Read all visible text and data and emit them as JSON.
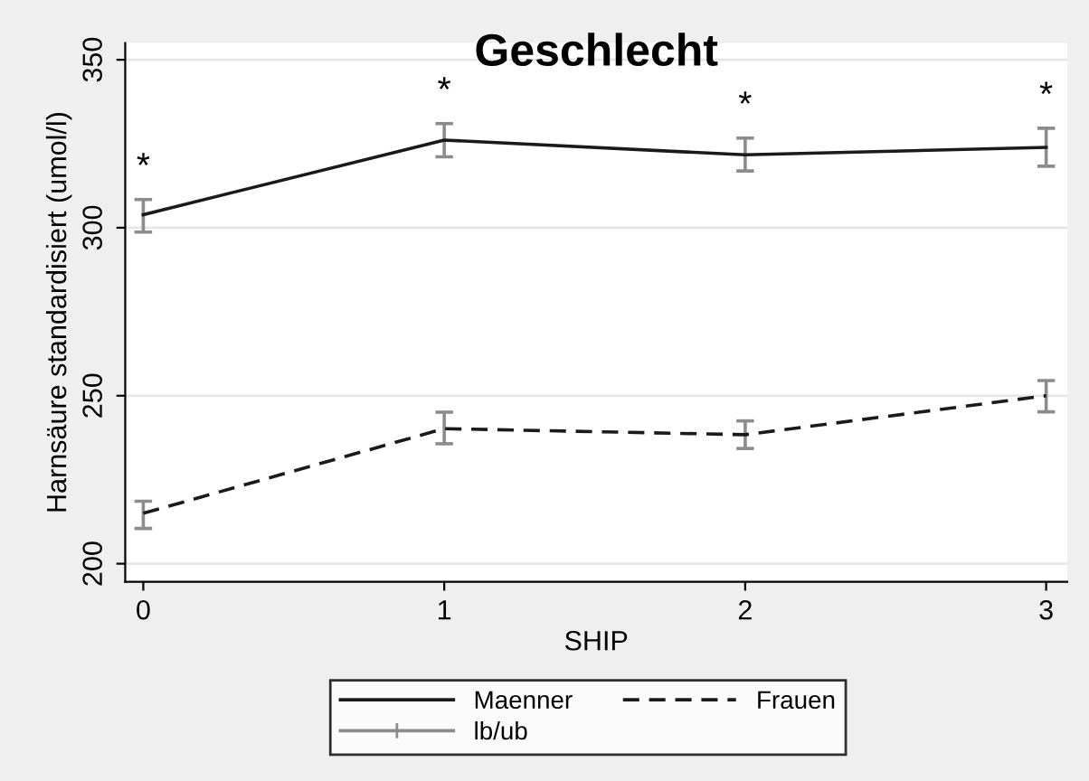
{
  "chart_data": {
    "type": "line",
    "title": "Geschlecht",
    "xlabel": "SHIP",
    "ylabel": "Harnsäure standardisiert (umol/l)",
    "x": [
      0,
      1,
      2,
      3
    ],
    "xlim": [
      -0.06,
      3.07
    ],
    "xticks": [
      0,
      1,
      2,
      3
    ],
    "ylim": [
      194.6,
      355
    ],
    "yticks": [
      200,
      250,
      300,
      350
    ],
    "grid": "y",
    "legend": "bottom",
    "marker": "none",
    "series": [
      {
        "name": "Maenner",
        "color": "#1a1a1a",
        "line_style": "solid",
        "values": [
          303.9,
          326.1,
          321.7,
          323.9
        ],
        "errors": [
          [
            298.7,
            308.4
          ],
          [
            321.1,
            331.0
          ],
          [
            316.9,
            326.7
          ],
          [
            318.3,
            329.6
          ]
        ]
      },
      {
        "name": "Frauen",
        "color": "#1a1a1a",
        "line_style": "dashed",
        "values": [
          215.0,
          240.2,
          238.4,
          250.0
        ],
        "errors": [
          [
            210.5,
            218.6
          ],
          [
            235.7,
            245.1
          ],
          [
            234.3,
            242.5
          ],
          [
            245.2,
            254.5
          ]
        ]
      },
      {
        "name": "lb/ub",
        "color": "#8c8c8c",
        "values": [
          null,
          null,
          null,
          null
        ]
      }
    ],
    "annotations": [
      "*",
      "*",
      "*",
      "*"
    ]
  }
}
